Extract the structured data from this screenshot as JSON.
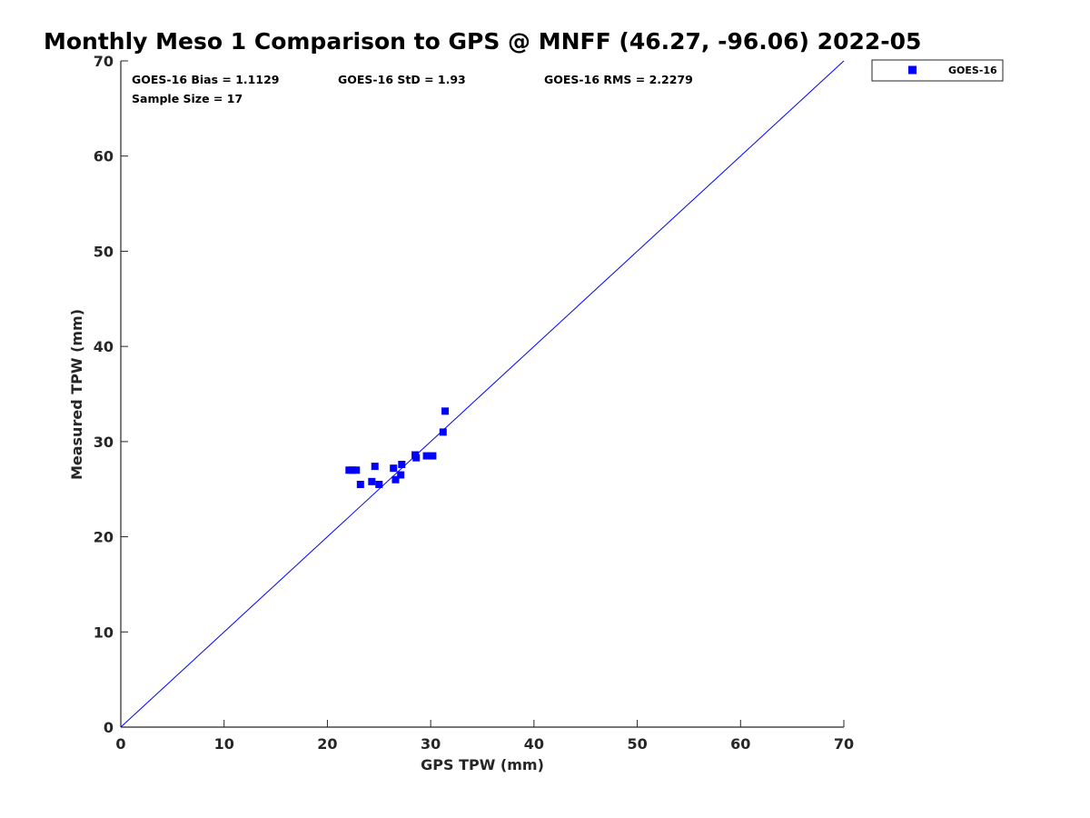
{
  "chart_data": {
    "type": "scatter",
    "title": "Monthly Meso 1 Comparison to GPS @ MNFF (46.27, -96.06) 2022-05",
    "xlabel": "GPS TPW (mm)",
    "ylabel": "Measured TPW (mm)",
    "xlim": [
      0,
      70
    ],
    "ylim": [
      0,
      70
    ],
    "xticks": [
      "0",
      "10",
      "20",
      "30",
      "40",
      "50",
      "60",
      "70"
    ],
    "yticks": [
      "0",
      "10",
      "20",
      "30",
      "40",
      "50",
      "60",
      "70"
    ],
    "grid": false,
    "legend_position": "top-right outside",
    "reference_line": {
      "name": "one-to-one line",
      "from": [
        0,
        0
      ],
      "to": [
        70,
        70
      ],
      "color": "#0000ff"
    },
    "series": [
      {
        "name": "GOES-16",
        "marker": "square",
        "color": "#0000ff",
        "points": [
          {
            "x": 22.1,
            "y": 27.0
          },
          {
            "x": 22.4,
            "y": 27.0
          },
          {
            "x": 22.8,
            "y": 27.0
          },
          {
            "x": 23.2,
            "y": 25.5
          },
          {
            "x": 24.3,
            "y": 25.8
          },
          {
            "x": 24.6,
            "y": 27.4
          },
          {
            "x": 25.0,
            "y": 25.5
          },
          {
            "x": 26.4,
            "y": 27.2
          },
          {
            "x": 26.6,
            "y": 26.0
          },
          {
            "x": 27.1,
            "y": 26.5
          },
          {
            "x": 27.2,
            "y": 27.6
          },
          {
            "x": 28.5,
            "y": 28.6
          },
          {
            "x": 28.6,
            "y": 28.3
          },
          {
            "x": 29.6,
            "y": 28.5
          },
          {
            "x": 30.2,
            "y": 28.5
          },
          {
            "x": 31.2,
            "y": 31.0
          },
          {
            "x": 31.4,
            "y": 33.2
          }
        ]
      }
    ],
    "annotations": {
      "bias": "GOES-16 Bias = 1.1129",
      "std": "GOES-16 StD = 1.93",
      "rms": "GOES-16 RMS = 2.2279",
      "sample_size": "Sample Size = 17"
    }
  }
}
